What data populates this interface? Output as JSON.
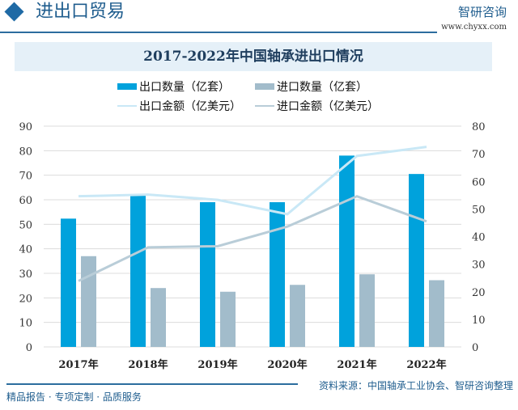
{
  "header": {
    "title": "进出口贸易",
    "brand": "智研咨询",
    "url": "www.chyxx.com"
  },
  "footer": {
    "tagline": "精品报告 · 专项定制 · 品质服务",
    "source": "资料来源：中国轴承工业协会、智研咨询整理"
  },
  "chart_data": {
    "type": "bar+line",
    "title": "2017-2022年中国轴承进出口情况",
    "categories": [
      "2017年",
      "2018年",
      "2019年",
      "2020年",
      "2021年",
      "2022年"
    ],
    "y_left": {
      "range": [
        0,
        90
      ],
      "ticks": [
        "0",
        "10",
        "20",
        "30",
        "40",
        "50",
        "60",
        "70",
        "80",
        "90"
      ]
    },
    "y_right": {
      "range": [
        0,
        80
      ],
      "ticks": [
        "0",
        "10",
        "20",
        "30",
        "40",
        "50",
        "60",
        "70",
        "80"
      ]
    },
    "series": [
      {
        "name": "出口数量（亿套）",
        "type": "bar",
        "axis": "left",
        "color": "#00a2dc",
        "values": [
          52.3,
          61.9,
          59.0,
          59.0,
          78.0,
          70.5
        ]
      },
      {
        "name": "进口数量（亿套）",
        "type": "bar",
        "axis": "left",
        "color": "#a2bccb",
        "values": [
          37.0,
          24.0,
          22.5,
          25.3,
          29.6,
          27.2
        ]
      },
      {
        "name": "出口金额（亿美元）",
        "type": "line",
        "axis": "right",
        "color": "#c9e8f6",
        "values": [
          54.6,
          55.2,
          53.3,
          48.1,
          69.2,
          72.5
        ]
      },
      {
        "name": "进口金额（亿美元）",
        "type": "line",
        "axis": "right",
        "color": "#b9cdd8",
        "values": [
          23.9,
          36.1,
          36.5,
          43.6,
          54.6,
          45.5
        ]
      }
    ],
    "grid": true,
    "legend": "top-center"
  }
}
